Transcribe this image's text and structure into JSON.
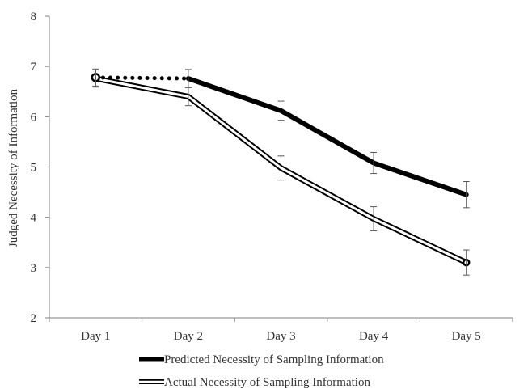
{
  "chart_data": {
    "type": "line",
    "title": "",
    "xlabel": "",
    "ylabel": "Judged Necessity of Information",
    "categories": [
      "Day 1",
      "Day 2",
      "Day 3",
      "Day 4",
      "Day 5"
    ],
    "ylim": [
      2,
      8
    ],
    "yticks": [
      "2",
      "3",
      "4",
      "5",
      "6",
      "7",
      "8"
    ],
    "grid": false,
    "legend_position": "bottom",
    "series": [
      {
        "name": "Predicted Necessity of Sampling Information",
        "values": [
          6.78,
          6.76,
          6.12,
          5.08,
          4.45
        ],
        "errors": [
          0.17,
          0.18,
          0.19,
          0.21,
          0.26
        ],
        "style": "solid-thick",
        "dotted_first_segment": true,
        "color": "#000000"
      },
      {
        "name": "Actual Necessity of Sampling Information",
        "values": [
          6.76,
          6.4,
          4.98,
          3.97,
          3.1
        ],
        "errors": [
          0.17,
          0.18,
          0.24,
          0.24,
          0.25
        ],
        "style": "double-line",
        "color": "#000000"
      }
    ]
  }
}
